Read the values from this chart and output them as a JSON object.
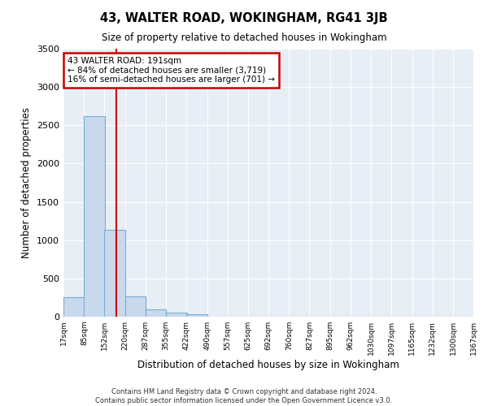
{
  "title": "43, WALTER ROAD, WOKINGHAM, RG41 3JB",
  "subtitle": "Size of property relative to detached houses in Wokingham",
  "xlabel": "Distribution of detached houses by size in Wokingham",
  "ylabel": "Number of detached properties",
  "footnote1": "Contains HM Land Registry data © Crown copyright and database right 2024.",
  "footnote2": "Contains public sector information licensed under the Open Government Licence v3.0.",
  "annotation_title": "43 WALTER ROAD: 191sqm",
  "annotation_line1": "← 84% of detached houses are smaller (3,719)",
  "annotation_line2": "16% of semi-detached houses are larger (701) →",
  "property_size": 191,
  "bar_color": "#c9d9ec",
  "bar_edge_color": "#7aadd4",
  "vline_color": "#cc0000",
  "annotation_box_edge": "#cc0000",
  "bins": [
    17,
    85,
    152,
    220,
    287,
    355,
    422,
    490,
    557,
    625,
    692,
    760,
    827,
    895,
    962,
    1030,
    1097,
    1165,
    1232,
    1300,
    1367
  ],
  "counts": [
    250,
    2620,
    1130,
    270,
    100,
    50,
    30,
    0,
    0,
    0,
    0,
    0,
    0,
    0,
    0,
    0,
    0,
    0,
    0,
    0
  ],
  "ylim": [
    0,
    3500
  ],
  "yticks": [
    0,
    500,
    1000,
    1500,
    2000,
    2500,
    3000,
    3500
  ],
  "bg_color": "#e8eef5",
  "fig_bg": "#ffffff",
  "grid_color": "#ffffff"
}
